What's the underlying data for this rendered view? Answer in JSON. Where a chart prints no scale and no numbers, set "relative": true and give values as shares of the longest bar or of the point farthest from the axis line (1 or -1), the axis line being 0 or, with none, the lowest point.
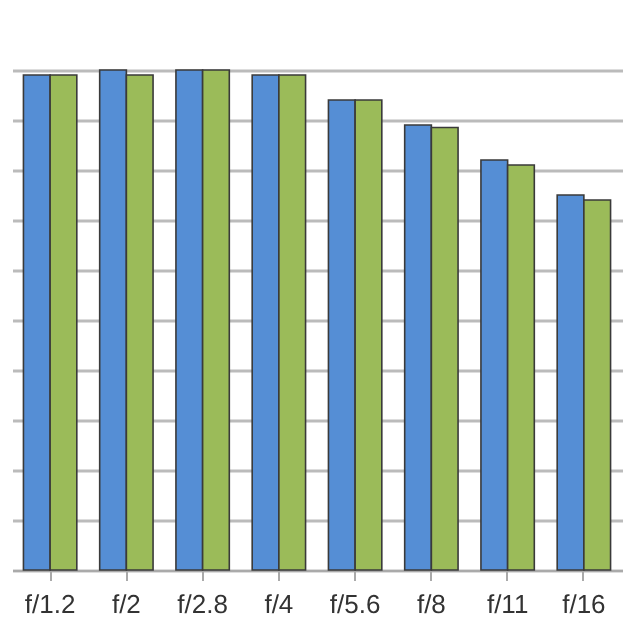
{
  "chart_data": {
    "type": "bar",
    "relative": true,
    "grid": "y",
    "categories": [
      "f/1.2",
      "f/2",
      "f/2.8",
      "f/4",
      "f/5.6",
      "f/8",
      "f/11",
      "f/16"
    ],
    "series": [
      {
        "color": "#558ed5",
        "values": [
          0.99,
          1.0,
          1.0,
          0.99,
          0.94,
          0.89,
          0.82,
          0.75
        ]
      },
      {
        "color": "#9bbb59",
        "values": [
          0.99,
          0.99,
          1.0,
          0.99,
          0.94,
          0.885,
          0.81,
          0.74
        ]
      }
    ]
  }
}
